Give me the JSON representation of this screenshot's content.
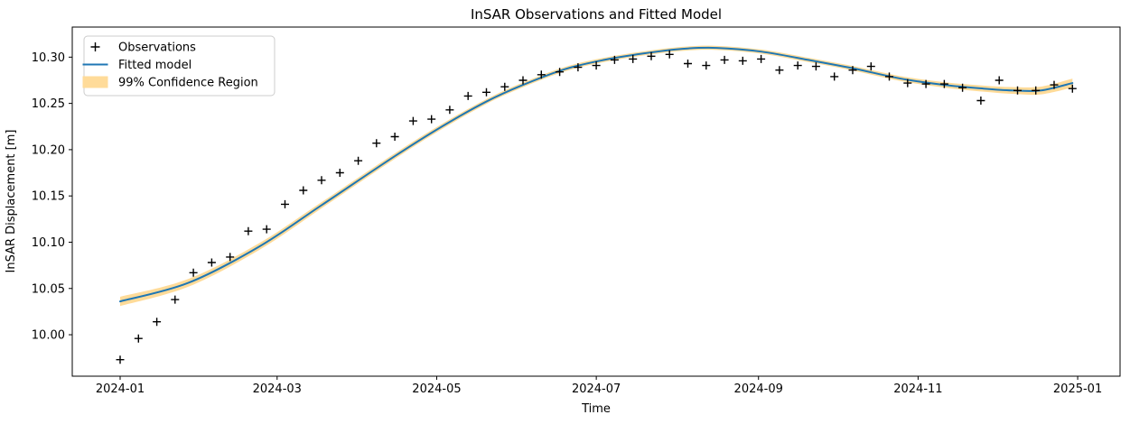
{
  "chart_data": {
    "type": "line",
    "title": "InSAR Observations and Fitted Model",
    "xlabel": "Time",
    "ylabel": "InSAR Displacement [m]",
    "grid": false,
    "legend_position": "upper left",
    "x_tick_labels": [
      "2024-01",
      "2024-03",
      "2024-05",
      "2024-07",
      "2024-09",
      "2024-11",
      "2025-01"
    ],
    "x_tick_dates": [
      "2024-01-01",
      "2024-03-01",
      "2024-05-01",
      "2024-07-01",
      "2024-09-01",
      "2024-11-01",
      "2025-01-01"
    ],
    "y_ticks": [
      10.0,
      10.05,
      10.1,
      10.15,
      10.2,
      10.25,
      10.3
    ],
    "ylim": [
      9.9552,
      10.3325
    ],
    "xlim_days_from_start": [
      -18.3,
      382.2
    ],
    "legend": [
      {
        "label": "Observations",
        "swatch": "plus-marker",
        "color": "#000000"
      },
      {
        "label": "Fitted model",
        "swatch": "line",
        "color": "#1f77b4"
      },
      {
        "label": "99% Confidence Region",
        "swatch": "patch",
        "color": "#ffdb99"
      }
    ],
    "observations": {
      "name": "Observations",
      "marker": "plus",
      "color": "#000000",
      "dates": [
        "2024-01-01",
        "2024-01-08",
        "2024-01-15",
        "2024-01-22",
        "2024-01-29",
        "2024-02-05",
        "2024-02-12",
        "2024-02-19",
        "2024-02-26",
        "2024-03-04",
        "2024-03-11",
        "2024-03-18",
        "2024-03-25",
        "2024-04-01",
        "2024-04-08",
        "2024-04-15",
        "2024-04-22",
        "2024-04-29",
        "2024-05-06",
        "2024-05-13",
        "2024-05-20",
        "2024-05-27",
        "2024-06-03",
        "2024-06-10",
        "2024-06-17",
        "2024-06-24",
        "2024-07-01",
        "2024-07-08",
        "2024-07-15",
        "2024-07-22",
        "2024-07-29",
        "2024-08-05",
        "2024-08-12",
        "2024-08-19",
        "2024-08-26",
        "2024-09-02",
        "2024-09-09",
        "2024-09-16",
        "2024-09-23",
        "2024-09-30",
        "2024-10-07",
        "2024-10-14",
        "2024-10-21",
        "2024-10-28",
        "2024-11-04",
        "2024-11-11",
        "2024-11-18",
        "2024-11-25",
        "2024-12-02",
        "2024-12-09",
        "2024-12-16",
        "2024-12-23",
        "2024-12-30"
      ],
      "values": [
        9.973,
        9.996,
        10.014,
        10.038,
        10.067,
        10.078,
        10.084,
        10.112,
        10.114,
        10.141,
        10.156,
        10.167,
        10.175,
        10.188,
        10.207,
        10.214,
        10.231,
        10.233,
        10.243,
        10.258,
        10.262,
        10.268,
        10.275,
        10.281,
        10.284,
        10.289,
        10.291,
        10.297,
        10.298,
        10.301,
        10.303,
        10.293,
        10.291,
        10.297,
        10.296,
        10.298,
        10.286,
        10.291,
        10.29,
        10.279,
        10.286,
        10.29,
        10.279,
        10.272,
        10.271,
        10.271,
        10.267,
        10.253,
        10.275,
        10.264,
        10.264,
        10.27,
        10.266
      ]
    },
    "fitted_model": {
      "name": "Fitted model",
      "color": "#1f77b4",
      "dates": [
        "2024-01-01",
        "2024-01-27",
        "2024-02-23",
        "2024-03-18",
        "2024-04-15",
        "2024-05-03",
        "2024-05-20",
        "2024-06-03",
        "2024-06-19",
        "2024-07-04",
        "2024-07-19",
        "2024-08-03",
        "2024-08-16",
        "2024-09-02",
        "2024-09-20",
        "2024-10-07",
        "2024-10-25",
        "2024-11-11",
        "2024-11-26",
        "2024-12-07",
        "2024-12-18",
        "2024-12-30"
      ],
      "values": [
        10.036,
        10.056,
        10.095,
        10.14,
        10.193,
        10.225,
        10.252,
        10.27,
        10.287,
        10.297,
        10.304,
        10.309,
        10.31,
        10.306,
        10.297,
        10.288,
        10.277,
        10.27,
        10.266,
        10.264,
        10.264,
        10.272
      ],
      "ci_label": "99% Confidence Region",
      "ci_color": "#ffdb99",
      "ci_halfwidth": [
        0.005,
        0.0042,
        0.0037,
        0.0033,
        0.003,
        0.0028,
        0.0026,
        0.0025,
        0.0024,
        0.0023,
        0.0022,
        0.0022,
        0.0022,
        0.0022,
        0.0023,
        0.0024,
        0.0026,
        0.0029,
        0.0033,
        0.0037,
        0.0042,
        0.0048
      ]
    }
  }
}
